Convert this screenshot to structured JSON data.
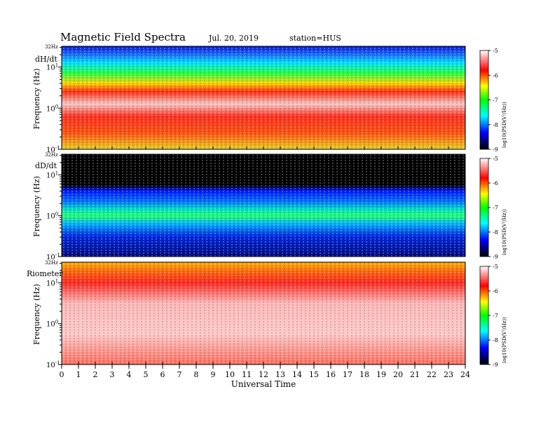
{
  "header": {
    "title": "Magnetic Field Spectra",
    "date": "Jul. 20, 2019",
    "station": "station=HUS"
  },
  "colors": {
    "colormap": [
      "#000000",
      "#0000ff",
      "#00ffff",
      "#00ff00",
      "#ffff00",
      "#ff0000",
      "#ffffff"
    ],
    "dD_background": "#000000"
  },
  "chart_data": [
    {
      "type": "heatmap",
      "panel_label": "dH/dt",
      "ylabel": "Frequency (Hz)",
      "top_label": "32Hz",
      "y_tick_labels": [
        "10^1",
        "10^0",
        "10^-1"
      ],
      "yscale": "log",
      "ylim": [
        0.1,
        32
      ],
      "xlim": [
        0,
        24
      ],
      "colorbar": {
        "label": "log10(PSD(V²/Hz))",
        "range": [
          -9,
          -5
        ],
        "ticks": [
          "-5",
          "-6",
          "-7",
          "-8",
          "-9"
        ]
      }
    },
    {
      "type": "heatmap",
      "panel_label": "dD/dt",
      "ylabel": "Frequency (Hz)",
      "top_label": "32Hz",
      "y_tick_labels": [
        "10^1",
        "10^0",
        "10^-1"
      ],
      "yscale": "log",
      "ylim": [
        0.1,
        32
      ],
      "xlim": [
        0,
        24
      ],
      "colorbar": {
        "label": "log10(PSD(V²/Hz))",
        "range": [
          -9,
          -5
        ],
        "ticks": [
          "-5",
          "-6",
          "-7",
          "-8",
          "-9"
        ]
      }
    },
    {
      "type": "heatmap",
      "panel_label": "Riometer",
      "ylabel": "Frequency (Hz)",
      "top_label": "32Hz",
      "y_tick_labels": [
        "10^1",
        "10^0",
        "10^-1"
      ],
      "yscale": "log",
      "ylim": [
        0.1,
        32
      ],
      "xlim": [
        0,
        24
      ],
      "xlabel": "Universal Time",
      "x_ticks": [
        "0",
        "1",
        "2",
        "3",
        "4",
        "5",
        "6",
        "7",
        "8",
        "9",
        "10",
        "11",
        "12",
        "13",
        "14",
        "15",
        "16",
        "17",
        "18",
        "19",
        "20",
        "21",
        "22",
        "23",
        "24"
      ],
      "colorbar": {
        "label": "log10(PSD(V²/Hz))",
        "range": [
          -9,
          -5
        ],
        "ticks": [
          "-5",
          "-6",
          "-7",
          "-8",
          "-9"
        ]
      }
    }
  ]
}
